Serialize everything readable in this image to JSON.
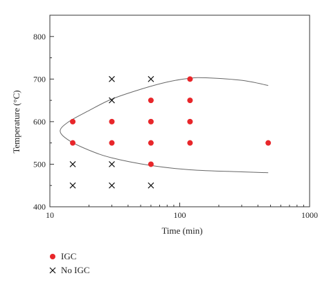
{
  "chart_data": {
    "type": "scatter",
    "xlabel": "Time (min)",
    "ylabel": "Temperature (°C)",
    "xscale": "log",
    "xlim": [
      10,
      1000
    ],
    "ylim": [
      400,
      850
    ],
    "xticks": [
      10,
      100,
      1000
    ],
    "xtick_labels": [
      "10",
      "100",
      "1000"
    ],
    "yticks": [
      400,
      500,
      600,
      700,
      800
    ],
    "ytick_labels": [
      "400",
      "500",
      "600",
      "700",
      "800"
    ],
    "grid": false,
    "legend_position": "bottom-left",
    "series": [
      {
        "name": "IGC",
        "marker": "filled-circle",
        "color": "#e8262a",
        "points": [
          [
            15,
            600
          ],
          [
            15,
            550
          ],
          [
            30,
            600
          ],
          [
            30,
            550
          ],
          [
            60,
            650
          ],
          [
            60,
            600
          ],
          [
            60,
            550
          ],
          [
            60,
            500
          ],
          [
            120,
            700
          ],
          [
            120,
            650
          ],
          [
            120,
            600
          ],
          [
            120,
            550
          ],
          [
            480,
            550
          ]
        ]
      },
      {
        "name": "No IGC",
        "marker": "cross",
        "color": "#111111",
        "points": [
          [
            15,
            500
          ],
          [
            15,
            450
          ],
          [
            30,
            700
          ],
          [
            30,
            650
          ],
          [
            30,
            500
          ],
          [
            30,
            450
          ],
          [
            60,
            700
          ],
          [
            60,
            450
          ]
        ]
      }
    ],
    "boundary_curve": {
      "color": "#666666",
      "points": [
        [
          480,
          685
        ],
        [
          300,
          697
        ],
        [
          160,
          703
        ],
        [
          120,
          702
        ],
        [
          80,
          693
        ],
        [
          50,
          676
        ],
        [
          30,
          653
        ],
        [
          20,
          626
        ],
        [
          14,
          600
        ],
        [
          12,
          578
        ],
        [
          14,
          556
        ],
        [
          20,
          533
        ],
        [
          30,
          515
        ],
        [
          60,
          497
        ],
        [
          120,
          487
        ],
        [
          300,
          482
        ],
        [
          480,
          480
        ]
      ]
    }
  }
}
